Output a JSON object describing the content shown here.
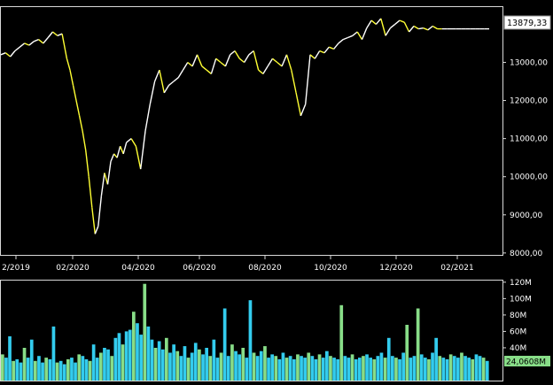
{
  "chart_data": [
    {
      "type": "line",
      "x_tick_labels": [
        "2/2019",
        "02/2020",
        "04/2020",
        "06/2020",
        "08/2020",
        "10/2020",
        "12/2020",
        "02/2021"
      ],
      "y_tick_labels": [
        "8000,00",
        "9000,00",
        "10000,00",
        "11000,00",
        "12000,00",
        "13000,00"
      ],
      "y_ticks": [
        8000,
        9000,
        10000,
        11000,
        12000,
        13000
      ],
      "ylim": [
        7950,
        14450
      ],
      "last_value_label": "13879,33",
      "last_value": 13879.33,
      "colors": {
        "up": "#ffffff",
        "down": "#ffff33",
        "axis": "#d8d8d8"
      },
      "series": [
        {
          "x": [
            0,
            3,
            6,
            9,
            12,
            15,
            18,
            21,
            24,
            27,
            30,
            33,
            36,
            39,
            42,
            44,
            46,
            48,
            50,
            52,
            54,
            56,
            58,
            60,
            62,
            64,
            66,
            68,
            70,
            72,
            74,
            76,
            78,
            80,
            83,
            86,
            89,
            92,
            95,
            98,
            101,
            104,
            107,
            110,
            113,
            116,
            119,
            122,
            125,
            128,
            131,
            134,
            137,
            140,
            143,
            146,
            149,
            152,
            155,
            158,
            161,
            164,
            167,
            170,
            173,
            176,
            179,
            182,
            185,
            188,
            191,
            194,
            197,
            200,
            203,
            206,
            209,
            212,
            215,
            218,
            221,
            224,
            227,
            230,
            233,
            236,
            239,
            242,
            245,
            248,
            251,
            254,
            257,
            260,
            263,
            266,
            269,
            272,
            275,
            278,
            281,
            284,
            287,
            290,
            293,
            296,
            299,
            302,
            305,
            308,
            311
          ],
          "values": [
            13200,
            13250,
            13150,
            13300,
            13400,
            13500,
            13450,
            13550,
            13600,
            13500,
            13650,
            13800,
            13700,
            13750,
            13100,
            12800,
            12400,
            12000,
            11600,
            11200,
            10700,
            10000,
            9200,
            8500,
            8700,
            9500,
            10100,
            9800,
            10400,
            10600,
            10500,
            10800,
            10600,
            10900,
            11000,
            10800,
            10200,
            11200,
            11900,
            12500,
            12800,
            12200,
            12400,
            12500,
            12600,
            12800,
            13000,
            12900,
            13200,
            12900,
            12800,
            12700,
            13100,
            13000,
            12900,
            13200,
            13300,
            13100,
            13000,
            13200,
            13300,
            12800,
            12700,
            12900,
            13100,
            13000,
            12900,
            13200,
            12800,
            12200,
            11600,
            11900,
            13200,
            13100,
            13300,
            13250,
            13400,
            13350,
            13500,
            13600,
            13650,
            13700,
            13800,
            13600,
            13900,
            14100,
            14000,
            14150,
            13700,
            13900,
            14000,
            14100,
            14050,
            13800,
            13950,
            13879,
            13900,
            13850,
            13950,
            13880,
            13879,
            13879,
            13879,
            13879,
            13879,
            13879,
            13879,
            13879,
            13879,
            13879,
            13879
          ]
        }
      ]
    },
    {
      "type": "bar",
      "y_tick_labels": [
        "40M",
        "60M",
        "80M",
        "100M",
        "120M"
      ],
      "y_ticks": [
        40,
        60,
        80,
        100,
        120
      ],
      "ylim": [
        0,
        122
      ],
      "last_value_label": "24,0608M",
      "last_value": 24.06,
      "colors": {
        "bar_a": "#33ccee",
        "bar_b": "#88dd88",
        "badge": "#88dd88"
      },
      "volumes": [
        32,
        28,
        54,
        24,
        26,
        22,
        40,
        28,
        50,
        24,
        30,
        22,
        28,
        26,
        66,
        22,
        24,
        20,
        26,
        28,
        22,
        32,
        30,
        26,
        24,
        44,
        28,
        34,
        40,
        38,
        30,
        52,
        58,
        44,
        60,
        62,
        84,
        70,
        56,
        118,
        66,
        50,
        40,
        48,
        38,
        52,
        34,
        44,
        36,
        30,
        42,
        28,
        34,
        46,
        38,
        32,
        40,
        30,
        50,
        28,
        34,
        88,
        30,
        44,
        36,
        32,
        40,
        28,
        98,
        34,
        30,
        36,
        42,
        28,
        32,
        30,
        26,
        34,
        28,
        30,
        26,
        32,
        30,
        28,
        34,
        30,
        26,
        32,
        28,
        36,
        30,
        28,
        26,
        92,
        30,
        28,
        32,
        26,
        28,
        30,
        32,
        28,
        26,
        30,
        34,
        28,
        52,
        30,
        28,
        26,
        34,
        68,
        28,
        30,
        88,
        32,
        28,
        26,
        34,
        52,
        30,
        28,
        26,
        32,
        30,
        28,
        34,
        30,
        28,
        26,
        32,
        30,
        28,
        24
      ]
    }
  ]
}
